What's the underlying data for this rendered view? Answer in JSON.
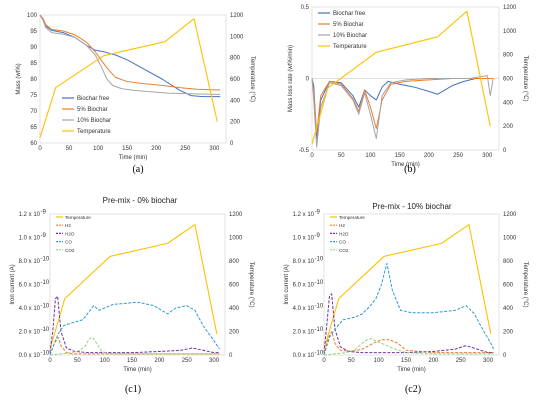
{
  "colors": {
    "blue": "#4472C4",
    "orange": "#ED7D31",
    "gray": "#A5A5A5",
    "yellow": "#FFC000",
    "green": "#70AD47",
    "h2o": "#7030A0",
    "co": "#2E9BD6",
    "co2": "#9BD17A"
  },
  "chart_data": [
    {
      "id": "a",
      "type": "line",
      "panel_label": "(a)",
      "title": "",
      "xlabel": "Time (min)",
      "ylabel": "Mass  (wt%)",
      "y2label": "Temperature (°C)",
      "xlim": [
        0,
        320
      ],
      "ylim": [
        60,
        100
      ],
      "y2lim": [
        0,
        1200
      ],
      "xticks": [
        0,
        50,
        100,
        150,
        200,
        250,
        300
      ],
      "yticks": [
        60,
        65,
        70,
        75,
        80,
        85,
        90,
        95,
        100
      ],
      "y2ticks": [
        0,
        200,
        400,
        600,
        800,
        1000,
        1200
      ],
      "legend_position": "bottom-left",
      "series": [
        {
          "name": "Biochar free",
          "axis": "left",
          "color": "#4472C4",
          "x": [
            0,
            5,
            10,
            20,
            40,
            60,
            80,
            95,
            110,
            130,
            150,
            180,
            210,
            240,
            260,
            280,
            300,
            310
          ],
          "y": [
            100,
            98.5,
            96.5,
            95.2,
            94.5,
            93,
            90.5,
            89,
            88.5,
            87.5,
            86,
            83,
            80,
            76.5,
            74.8,
            74.5,
            74.5,
            74.5
          ]
        },
        {
          "name": "5% Biochar",
          "axis": "left",
          "color": "#ED7D31",
          "x": [
            0,
            5,
            10,
            20,
            40,
            60,
            80,
            95,
            105,
            115,
            130,
            150,
            180,
            210,
            240,
            270,
            300,
            310
          ],
          "y": [
            100,
            99,
            97,
            95.5,
            95,
            93.8,
            91.5,
            88.5,
            86,
            83.5,
            80.5,
            79.2,
            78.5,
            78,
            77.3,
            76.8,
            76.6,
            76.6
          ]
        },
        {
          "name": "10% Biochar",
          "axis": "left",
          "color": "#A5A5A5",
          "x": [
            0,
            5,
            10,
            20,
            40,
            60,
            80,
            95,
            105,
            115,
            125,
            140,
            160,
            190,
            220,
            260,
            300,
            310
          ],
          "y": [
            100,
            98.5,
            96,
            94.5,
            94,
            93,
            90.5,
            87.5,
            84,
            80,
            78,
            77,
            76.5,
            76,
            75.6,
            75.4,
            75.2,
            75.2
          ]
        },
        {
          "name": "Temperature",
          "axis": "right",
          "color": "#FFC000",
          "x": [
            0,
            27,
            110,
            215,
            265,
            305
          ],
          "y": [
            50,
            520,
            820,
            950,
            1165,
            200
          ]
        }
      ]
    },
    {
      "id": "b",
      "type": "line",
      "panel_label": "(b)",
      "title": "",
      "xlabel": "Time (min)",
      "ylabel": "Mass loss rate (wt%/min)",
      "y2label": "Temperature (°C)",
      "xlim": [
        0,
        320
      ],
      "ylim": [
        -0.5,
        0.5
      ],
      "y2lim": [
        0,
        1200
      ],
      "xticks": [
        0,
        50,
        100,
        150,
        200,
        250,
        300
      ],
      "yticks": [
        -0.5,
        0,
        0.5
      ],
      "y2ticks": [
        0,
        200,
        400,
        600,
        800,
        1000,
        1200
      ],
      "legend_position": "top-left",
      "series": [
        {
          "name": "Biochar free",
          "axis": "left",
          "color": "#4472C4",
          "x": [
            0,
            3,
            8,
            15,
            30,
            50,
            70,
            80,
            90,
            100,
            110,
            120,
            130,
            150,
            175,
            200,
            215,
            240,
            260,
            280,
            300,
            310
          ],
          "y": [
            0,
            -0.05,
            -0.42,
            -0.15,
            -0.02,
            -0.03,
            -0.12,
            -0.2,
            -0.08,
            -0.12,
            -0.15,
            -0.06,
            -0.02,
            -0.04,
            -0.06,
            -0.09,
            -0.11,
            -0.05,
            -0.02,
            0,
            0,
            0
          ]
        },
        {
          "name": "5% Biochar",
          "axis": "left",
          "color": "#ED7D31",
          "x": [
            0,
            3,
            8,
            15,
            30,
            50,
            70,
            80,
            90,
            100,
            110,
            120,
            135,
            160,
            200,
            240,
            270,
            300,
            310
          ],
          "y": [
            0,
            -0.1,
            -0.38,
            -0.12,
            -0.02,
            -0.04,
            -0.14,
            -0.23,
            -0.08,
            -0.2,
            -0.35,
            -0.15,
            -0.04,
            -0.02,
            -0.01,
            0,
            0,
            0,
            0
          ]
        },
        {
          "name": "10% Biochar",
          "axis": "left",
          "color": "#A5A5A5",
          "x": [
            0,
            3,
            8,
            15,
            30,
            50,
            70,
            80,
            90,
            100,
            110,
            120,
            135,
            160,
            200,
            240,
            270,
            300,
            305,
            310
          ],
          "y": [
            0,
            -0.15,
            -0.48,
            -0.2,
            -0.03,
            -0.05,
            -0.15,
            -0.25,
            -0.1,
            -0.25,
            -0.42,
            -0.12,
            -0.03,
            -0.01,
            0,
            0,
            0,
            0.02,
            -0.12,
            0
          ]
        },
        {
          "name": "Temperature",
          "axis": "right",
          "color": "#FFC000",
          "x": [
            0,
            27,
            110,
            215,
            265,
            305
          ],
          "y": [
            50,
            520,
            820,
            950,
            1165,
            200
          ]
        }
      ]
    },
    {
      "id": "c1",
      "type": "line",
      "panel_label": "(c1)",
      "title": "Pre-mix - 0% biochar",
      "xlabel": "Time (min)",
      "ylabel": "Iron current (A)",
      "y2label": "Temperature (°C)",
      "xlim": [
        0,
        320
      ],
      "ylim": [
        0,
        1.2
      ],
      "y2lim": [
        0,
        1200
      ],
      "xticks": [
        0,
        50,
        100,
        150,
        200,
        250,
        300
      ],
      "yticks": [
        0,
        0.2,
        0.4,
        0.6,
        0.8,
        1.0,
        1.2
      ],
      "ytick_labels": [
        "0.0 x 10",
        "2.0 x 10",
        "4.0 x 10",
        "6.0 x 10",
        "8.0 x 10",
        "1.0 x 10",
        "1.2 x 10"
      ],
      "ytick_exponents": [
        "-10",
        "-10",
        "-10",
        "-10",
        "-10",
        "-9",
        "-9"
      ],
      "y2ticks": [
        0,
        200,
        400,
        600,
        800,
        1000,
        1200
      ],
      "legend_position": "top-left",
      "series": [
        {
          "name": "Temperature",
          "axis": "right",
          "color": "#FFC000",
          "dash": "",
          "x": [
            0,
            27,
            110,
            215,
            265,
            305
          ],
          "y": [
            50,
            480,
            840,
            950,
            1110,
            180
          ]
        },
        {
          "name": "H2",
          "axis": "left",
          "color": "#ED7D31",
          "dash": "3,1.5",
          "x": [
            0,
            8,
            15,
            20,
            30,
            40,
            60,
            100,
            150,
            200,
            250,
            300,
            310
          ],
          "y": [
            0,
            0.1,
            0.15,
            0.08,
            0.02,
            0.01,
            0.01,
            0.01,
            0.01,
            0.01,
            0.01,
            0.01,
            0.01
          ]
        },
        {
          "name": "H2O",
          "axis": "left",
          "color": "#7030A0",
          "dash": "3,1.5",
          "x": [
            0,
            5,
            10,
            14,
            20,
            30,
            45,
            70,
            100,
            150,
            200,
            240,
            260,
            280,
            300,
            310
          ],
          "y": [
            0.02,
            0.2,
            0.48,
            0.5,
            0.2,
            0.06,
            0.03,
            0.02,
            0.02,
            0.02,
            0.03,
            0.04,
            0.06,
            0.04,
            0.02,
            0.02
          ]
        },
        {
          "name": "CO",
          "axis": "left",
          "color": "#2E9BD6",
          "dash": "3,1.5",
          "x": [
            0,
            8,
            15,
            25,
            45,
            60,
            80,
            90,
            100,
            115,
            140,
            160,
            190,
            215,
            230,
            250,
            265,
            280,
            300,
            310
          ],
          "y": [
            0,
            0.1,
            0.18,
            0.25,
            0.28,
            0.3,
            0.42,
            0.38,
            0.4,
            0.43,
            0.44,
            0.45,
            0.42,
            0.35,
            0.4,
            0.42,
            0.38,
            0.25,
            0.12,
            0.05
          ]
        },
        {
          "name": "CO2",
          "axis": "left",
          "color": "#9BD17A",
          "dash": "3,1.5",
          "x": [
            0,
            20,
            40,
            55,
            65,
            72,
            78,
            85,
            95,
            110,
            150,
            200,
            250,
            300,
            310
          ],
          "y": [
            0,
            0.01,
            0.02,
            0.04,
            0.08,
            0.14,
            0.15,
            0.1,
            0.03,
            0.01,
            0.01,
            0.01,
            0.01,
            0.01,
            0.01
          ]
        }
      ]
    },
    {
      "id": "c2",
      "type": "line",
      "panel_label": "(c2)",
      "title": "Pre-mix - 10% biochar",
      "xlabel": "Time (min)",
      "ylabel": "Iron current (A)",
      "y2label": "Temperature (°C)",
      "xlim": [
        0,
        320
      ],
      "ylim": [
        0,
        1.2
      ],
      "y2lim": [
        0,
        1200
      ],
      "xticks": [
        0,
        50,
        100,
        150,
        200,
        250,
        300
      ],
      "yticks": [
        0,
        0.2,
        0.4,
        0.6,
        0.8,
        1.0,
        1.2
      ],
      "ytick_labels": [
        "0.0 x 10",
        "2.0 x 10",
        "4.0 x 10",
        "6.0 x 10",
        "8.0 x 10",
        "1.0 x 10",
        "1.2 x 10"
      ],
      "ytick_exponents": [
        "-10",
        "-10",
        "-10",
        "-10",
        "-10",
        "-9",
        "-9"
      ],
      "y2ticks": [
        0,
        200,
        400,
        600,
        800,
        1000,
        1200
      ],
      "legend_position": "top-left",
      "series": [
        {
          "name": "Temperature",
          "axis": "right",
          "color": "#FFC000",
          "dash": "",
          "x": [
            0,
            27,
            110,
            215,
            265,
            305
          ],
          "y": [
            50,
            480,
            840,
            950,
            1110,
            180
          ]
        },
        {
          "name": "H2",
          "axis": "left",
          "color": "#ED7D31",
          "dash": "3,1.5",
          "x": [
            0,
            8,
            14,
            20,
            30,
            50,
            70,
            90,
            105,
            120,
            135,
            150,
            200,
            250,
            300,
            310
          ],
          "y": [
            0,
            0.15,
            0.2,
            0.1,
            0.04,
            0.03,
            0.05,
            0.1,
            0.13,
            0.13,
            0.1,
            0.04,
            0.02,
            0.02,
            0.02,
            0.02
          ]
        },
        {
          "name": "H2O",
          "axis": "left",
          "color": "#7030A0",
          "dash": "3,1.5",
          "x": [
            0,
            5,
            10,
            14,
            20,
            30,
            45,
            70,
            100,
            150,
            200,
            240,
            260,
            280,
            300,
            310
          ],
          "y": [
            0.02,
            0.25,
            0.5,
            0.52,
            0.22,
            0.07,
            0.03,
            0.02,
            0.02,
            0.02,
            0.03,
            0.05,
            0.08,
            0.05,
            0.02,
            0.02
          ]
        },
        {
          "name": "CO",
          "axis": "left",
          "color": "#2E9BD6",
          "dash": "3,1.5",
          "x": [
            0,
            10,
            20,
            35,
            55,
            70,
            85,
            95,
            105,
            115,
            125,
            140,
            160,
            200,
            240,
            260,
            275,
            290,
            305,
            310
          ],
          "y": [
            0,
            0.15,
            0.22,
            0.3,
            0.32,
            0.35,
            0.42,
            0.48,
            0.6,
            0.78,
            0.55,
            0.38,
            0.36,
            0.36,
            0.38,
            0.42,
            0.35,
            0.22,
            0.1,
            0.05
          ]
        },
        {
          "name": "CO2",
          "axis": "left",
          "color": "#9BD17A",
          "dash": "3,1.5",
          "x": [
            0,
            20,
            40,
            55,
            65,
            75,
            85,
            95,
            105,
            115,
            130,
            150,
            200,
            250,
            300,
            310
          ],
          "y": [
            0,
            0.01,
            0.02,
            0.04,
            0.08,
            0.12,
            0.14,
            0.12,
            0.1,
            0.08,
            0.05,
            0.02,
            0.01,
            0.01,
            0.01,
            0.01
          ]
        }
      ]
    }
  ]
}
